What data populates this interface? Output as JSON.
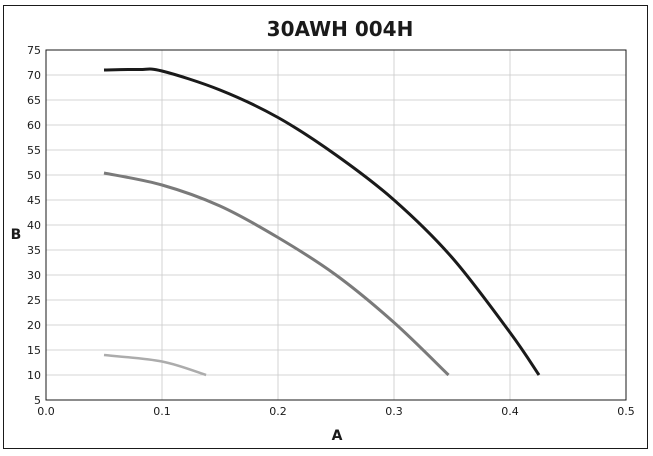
{
  "chart_data": {
    "type": "line",
    "title": "30AWH 004H",
    "xlabel": "A",
    "ylabel": "B",
    "xlim": [
      0.0,
      0.5
    ],
    "ylim": [
      5,
      75
    ],
    "xticks": [
      "0.0",
      "0.1",
      "0.2",
      "0.3",
      "0.4",
      "0.5"
    ],
    "yticks": [
      "5",
      "10",
      "15",
      "20",
      "25",
      "30",
      "35",
      "40",
      "45",
      "50",
      "55",
      "60",
      "65",
      "70",
      "75"
    ],
    "grid": true,
    "series": [
      {
        "color": "#1a1a1a",
        "points": [
          [
            0.05,
            71.0
          ],
          [
            0.08,
            71.1
          ],
          [
            0.1,
            70.8
          ],
          [
            0.15,
            67.0
          ],
          [
            0.2,
            61.5
          ],
          [
            0.25,
            54.0
          ],
          [
            0.3,
            45.0
          ],
          [
            0.35,
            33.5
          ],
          [
            0.4,
            18.5
          ],
          [
            0.425,
            10.0
          ]
        ]
      },
      {
        "color": "#7a7a7a",
        "points": [
          [
            0.05,
            50.4
          ],
          [
            0.1,
            48.0
          ],
          [
            0.15,
            43.8
          ],
          [
            0.2,
            37.5
          ],
          [
            0.25,
            30.0
          ],
          [
            0.3,
            20.5
          ],
          [
            0.347,
            10.0
          ]
        ]
      },
      {
        "color": "#acacac",
        "points": [
          [
            0.05,
            14.0
          ],
          [
            0.1,
            12.7
          ],
          [
            0.138,
            10.0
          ]
        ]
      }
    ]
  }
}
